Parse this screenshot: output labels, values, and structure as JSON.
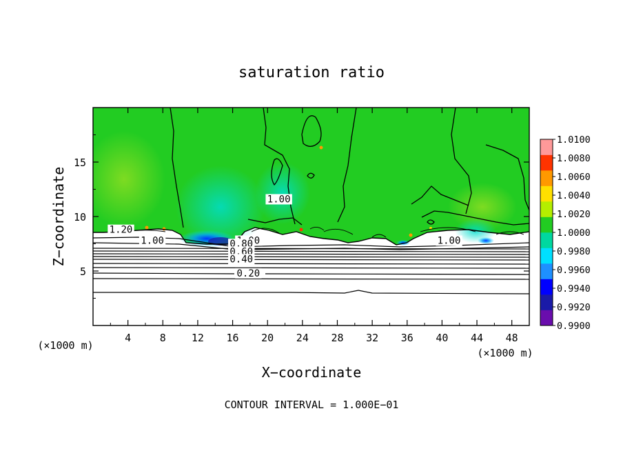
{
  "chart_data": {
    "type": "heatmap",
    "title": "saturation ratio",
    "xlabel": "X−coordinate",
    "ylabel": "Z−coordinate",
    "x_unit_label": "(×1000 m)",
    "z_unit_label": "(×1000 m)",
    "footer": "CONTOUR INTERVAL = 1.000E−01",
    "xlim": [
      0,
      50
    ],
    "ylim": [
      0,
      20
    ],
    "x_ticks": [
      4,
      8,
      12,
      16,
      20,
      24,
      28,
      32,
      36,
      40,
      44,
      48
    ],
    "x_tick_labels": [
      "4",
      "8",
      "12",
      "16",
      "20",
      "24",
      "28",
      "32",
      "36",
      "40",
      "44",
      "48"
    ],
    "y_ticks": [
      5,
      10,
      15
    ],
    "y_tick_labels": [
      "5",
      "10",
      "15"
    ],
    "colorbar": {
      "min": 0.99,
      "max": 1.01,
      "levels": [
        0.99,
        0.992,
        0.994,
        0.996,
        0.998,
        1.0,
        1.002,
        1.004,
        1.006,
        1.008,
        1.01
      ],
      "tick_labels": [
        "0.9900",
        "0.9920",
        "0.9940",
        "0.9960",
        "0.9980",
        "1.0000",
        "1.0020",
        "1.0040",
        "1.0060",
        "1.0080",
        "1.0100"
      ],
      "colors": [
        "#6a0dad",
        "#1a1aa8",
        "#0000ff",
        "#1e90ff",
        "#00e0ff",
        "#00d8a0",
        "#22cc22",
        "#b4ee00",
        "#ffe000",
        "#ff9900",
        "#ff3300",
        "#ff9999"
      ]
    },
    "contour_labels": [
      {
        "text": "1.20",
        "x": 3.2,
        "z": 8.5
      },
      {
        "text": "1.00",
        "x": 6.8,
        "z": 7.5
      },
      {
        "text": "1.00",
        "x": 21.3,
        "z": 11.3
      },
      {
        "text": "1.00",
        "x": 17.8,
        "z": 7.5
      },
      {
        "text": "1.00",
        "x": 40.8,
        "z": 7.5
      },
      {
        "text": "0.80",
        "x": 17.0,
        "z": 7.2
      },
      {
        "text": "0.60",
        "x": 17.0,
        "z": 6.5
      },
      {
        "text": "0.40",
        "x": 17.0,
        "z": 5.8
      },
      {
        "text": "0.20",
        "x": 17.8,
        "z": 4.5
      }
    ]
  }
}
